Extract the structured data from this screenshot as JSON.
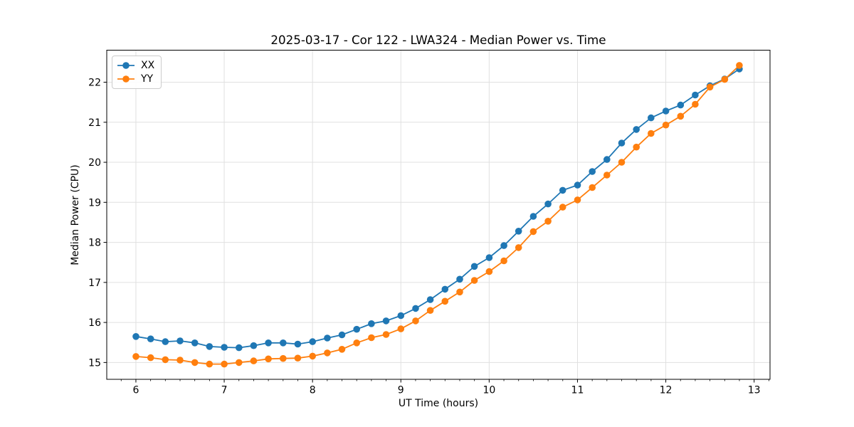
{
  "chart_data": {
    "type": "line",
    "title": "2025-03-17 - Cor 122 - LWA324 - Median Power vs. Time",
    "xlabel": "UT Time (hours)",
    "ylabel": "Median Power (CPU)",
    "xlim": [
      5.67,
      13.18
    ],
    "ylim": [
      14.58,
      22.8
    ],
    "xticks": [
      6,
      7,
      8,
      9,
      10,
      11,
      12,
      13
    ],
    "yticks": [
      15,
      16,
      17,
      18,
      19,
      20,
      21,
      22
    ],
    "x_minor_tick_step_hours": 0.1667,
    "grid": true,
    "legend": {
      "position": "upper-left",
      "entries": [
        "XX",
        "YY"
      ]
    },
    "x": [
      6.0,
      6.167,
      6.333,
      6.5,
      6.667,
      6.833,
      7.0,
      7.167,
      7.333,
      7.5,
      7.667,
      7.833,
      8.0,
      8.167,
      8.333,
      8.5,
      8.667,
      8.833,
      9.0,
      9.167,
      9.333,
      9.5,
      9.667,
      9.833,
      10.0,
      10.167,
      10.333,
      10.5,
      10.667,
      10.833,
      11.0,
      11.167,
      11.333,
      11.5,
      11.667,
      11.833,
      12.0,
      12.167,
      12.333,
      12.5,
      12.667,
      12.833
    ],
    "series": [
      {
        "name": "XX",
        "color": "#1f77b4",
        "values": [
          15.65,
          15.59,
          15.52,
          15.54,
          15.49,
          15.4,
          15.38,
          15.37,
          15.42,
          15.49,
          15.49,
          15.46,
          15.52,
          15.61,
          15.69,
          15.83,
          15.97,
          16.04,
          16.17,
          16.35,
          16.57,
          16.83,
          17.08,
          17.4,
          17.62,
          17.92,
          18.28,
          18.65,
          18.96,
          19.3,
          19.43,
          19.77,
          20.07,
          20.48,
          20.82,
          21.11,
          21.28,
          21.43,
          21.68,
          21.91,
          22.08,
          22.33
        ]
      },
      {
        "name": "YY",
        "color": "#ff7f0e",
        "values": [
          15.15,
          15.12,
          15.07,
          15.06,
          15.0,
          14.96,
          14.96,
          15.0,
          15.04,
          15.09,
          15.1,
          15.11,
          15.16,
          15.24,
          15.33,
          15.49,
          15.62,
          15.7,
          15.84,
          16.04,
          16.3,
          16.53,
          16.76,
          17.05,
          17.27,
          17.54,
          17.87,
          18.27,
          18.53,
          18.88,
          19.06,
          19.37,
          19.68,
          20.0,
          20.38,
          20.72,
          20.93,
          21.15,
          21.45,
          21.88,
          22.07,
          22.42
        ]
      }
    ]
  }
}
